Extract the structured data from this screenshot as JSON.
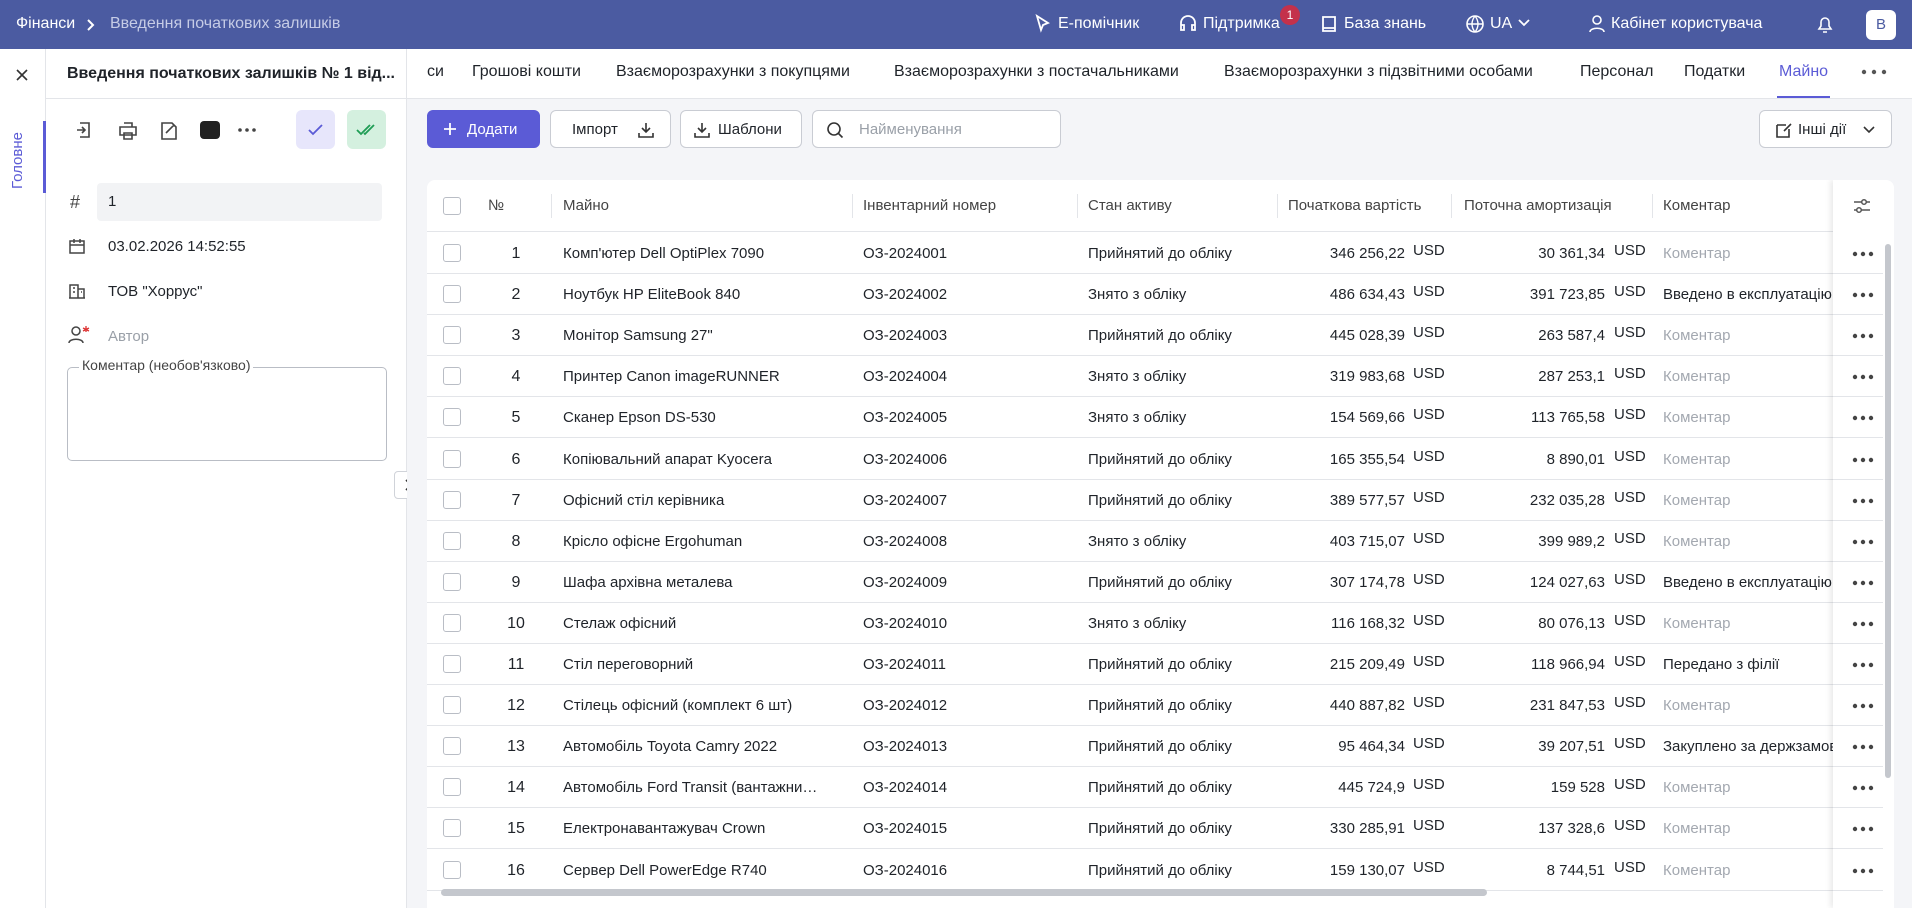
{
  "topbar": {
    "breadcrumbs": [
      "Фінанси",
      "Введення початкових залишків"
    ],
    "e_helper": "Е-помічник",
    "support": "Підтримка",
    "support_badge": "1",
    "knowledge": "База знань",
    "lang": "UA",
    "cabinet": "Кабінет користувача",
    "avatar": "В"
  },
  "side_tab": "Головне",
  "doc": {
    "title": "Введення початкових залишків № 1 від...",
    "number": "1",
    "date": "03.02.2026 14:52:55",
    "org": "ТОВ \"Хоррус\"",
    "author_placeholder": "Автор",
    "comment_label": "Коментар (необов'язково)"
  },
  "tabs": [
    "си",
    "Грошові кошти",
    "Взаєморозрахунки з покупцями",
    "Взаєморозрахунки з постачальниками",
    "Взаєморозрахунки з підзвітними особами",
    "Персонал",
    "Податки",
    "Майно"
  ],
  "active_tab": 7,
  "toolbar": {
    "add": "Додати",
    "import": "Імпорт",
    "templates": "Шаблони",
    "search_placeholder": "Найменування",
    "other": "Інші дії"
  },
  "table": {
    "columns": [
      "№",
      "Майно",
      "Інвентарний номер",
      "Стан активу",
      "Початкова вартість",
      "Поточна амортизація",
      "Коментар"
    ],
    "rows": [
      [
        1,
        "Комп'ютер Dell OptiPlex 7090",
        "ОЗ-2024001",
        "Прийнятий до обліку",
        "346 256,22",
        "USD",
        "30 361,34",
        "USD",
        "Коментар"
      ],
      [
        2,
        "Ноутбук HP EliteBook 840",
        "ОЗ-2024002",
        "Знято з обліку",
        "486 634,43",
        "USD",
        "391 723,85",
        "USD",
        "Введено в експлуатацію"
      ],
      [
        3,
        "Монітор Samsung 27\"",
        "ОЗ-2024003",
        "Прийнятий до обліку",
        "445 028,39",
        "USD",
        "263 587,4",
        "USD",
        "Коментар"
      ],
      [
        4,
        "Принтер Canon imageRUNNER",
        "ОЗ-2024004",
        "Знято з обліку",
        "319 983,68",
        "USD",
        "287 253,1",
        "USD",
        "Коментар"
      ],
      [
        5,
        "Сканер Epson DS-530",
        "ОЗ-2024005",
        "Знято з обліку",
        "154 569,66",
        "USD",
        "113 765,58",
        "USD",
        "Коментар"
      ],
      [
        6,
        "Копіювальний апарат Kyocera",
        "ОЗ-2024006",
        "Прийнятий до обліку",
        "165 355,54",
        "USD",
        "8 890,01",
        "USD",
        "Коментар"
      ],
      [
        7,
        "Офісний стіл керівника",
        "ОЗ-2024007",
        "Прийнятий до обліку",
        "389 577,57",
        "USD",
        "232 035,28",
        "USD",
        "Коментар"
      ],
      [
        8,
        "Крісло офісне Ergohuman",
        "ОЗ-2024008",
        "Знято з обліку",
        "403 715,07",
        "USD",
        "399 989,2",
        "USD",
        "Коментар"
      ],
      [
        9,
        "Шафа архівна металева",
        "ОЗ-2024009",
        "Прийнятий до обліку",
        "307 174,78",
        "USD",
        "124 027,63",
        "USD",
        "Введено в експлуатацію"
      ],
      [
        10,
        "Стелаж офісний",
        "ОЗ-2024010",
        "Знято з обліку",
        "116 168,32",
        "USD",
        "80 076,13",
        "USD",
        "Коментар"
      ],
      [
        11,
        "Стіл переговорний",
        "ОЗ-2024011",
        "Прийнятий до обліку",
        "215 209,49",
        "USD",
        "118 966,94",
        "USD",
        "Передано з філії"
      ],
      [
        12,
        "Стілець офісний (комплект 6 шт)",
        "ОЗ-2024012",
        "Прийнятий до обліку",
        "440 887,82",
        "USD",
        "231 847,53",
        "USD",
        "Коментар"
      ],
      [
        13,
        "Автомобіль Toyota Camry 2022",
        "ОЗ-2024013",
        "Прийнятий до обліку",
        "95 464,34",
        "USD",
        "39 207,51",
        "USD",
        "Закуплено за держзамовленням"
      ],
      [
        14,
        "Автомобіль Ford Transit (вантажни…",
        "ОЗ-2024014",
        "Прийнятий до обліку",
        "445 724,9",
        "USD",
        "159 528",
        "USD",
        "Коментар"
      ],
      [
        15,
        "Електронавантажувач Crown",
        "ОЗ-2024015",
        "Прийнятий до обліку",
        "330 285,91",
        "USD",
        "137 328,6",
        "USD",
        "Коментар"
      ],
      [
        16,
        "Сервер Dell PowerEdge R740",
        "ОЗ-2024016",
        "Прийнятий до обліку",
        "159 130,07",
        "USD",
        "8 744,51",
        "USD",
        "Коментар"
      ]
    ]
  }
}
